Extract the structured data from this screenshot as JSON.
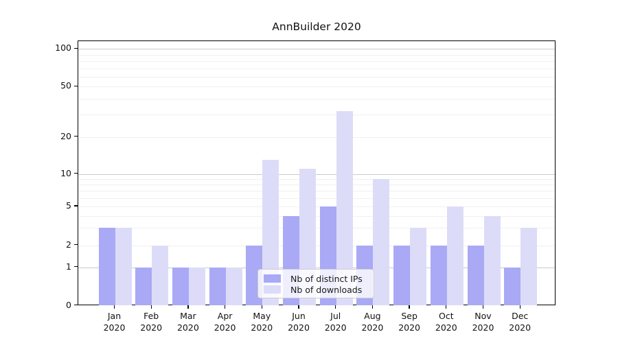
{
  "chart_data": {
    "type": "bar",
    "title": "AnnBuilder 2020",
    "categories": [
      "Jan",
      "Feb",
      "Mar",
      "Apr",
      "May",
      "Jun",
      "Jul",
      "Aug",
      "Sep",
      "Oct",
      "Nov",
      "Dec"
    ],
    "category_year": "2020",
    "series": [
      {
        "name": "Nb of distinct IPs",
        "color": "#a9a9f6",
        "values": [
          3,
          1,
          1,
          1,
          2,
          4,
          5,
          2,
          2,
          2,
          2,
          1
        ]
      },
      {
        "name": "Nb of downloads",
        "color": "#dcdcf9",
        "values": [
          3,
          2,
          1,
          1,
          13,
          11,
          32,
          9,
          3,
          5,
          4,
          3
        ]
      }
    ],
    "xlabel": "",
    "ylabel": "",
    "y_axis": {
      "scale": "log-like",
      "tick_values": [
        0,
        1,
        2,
        5,
        10,
        20,
        50,
        100
      ],
      "major_gridline_values": [
        1,
        10,
        100
      ],
      "minor_gridline_values": [
        2,
        3,
        4,
        5,
        6,
        7,
        8,
        9,
        20,
        30,
        40,
        50,
        60,
        70,
        80,
        90
      ],
      "ylim": [
        0,
        110
      ]
    },
    "grid": "on",
    "legend": {
      "position": "inside-bottom-center",
      "entries": [
        "Nb of distinct IPs",
        "Nb of downloads"
      ]
    }
  }
}
